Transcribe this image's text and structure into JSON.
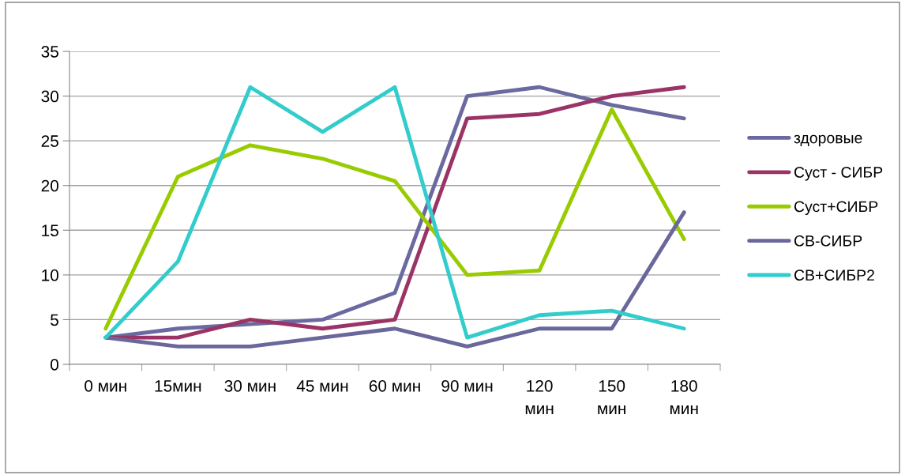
{
  "chart_data": {
    "type": "line",
    "categories": [
      "0 мин",
      "15мин",
      "30 мин",
      "45 мин",
      "60 мин",
      "90 мин",
      "120\nмин",
      "150\nмин",
      "180\nмин"
    ],
    "series": [
      {
        "name": "здоровые",
        "color": "#6b6aa0",
        "values": [
          3,
          4,
          4.5,
          5,
          8,
          30,
          31,
          29,
          27.5
        ]
      },
      {
        "name": "Суст - СИБР",
        "color": "#9b3466",
        "values": [
          3,
          3,
          5,
          4,
          5,
          27.5,
          28,
          30,
          31
        ]
      },
      {
        "name": "Суст+СИБР",
        "color": "#99cc00",
        "values": [
          4,
          21,
          24.5,
          23,
          20.5,
          10,
          10.5,
          28.5,
          14
        ]
      },
      {
        "name": "СВ-СИБР",
        "color": "#6a679b",
        "values": [
          3,
          2,
          2,
          3,
          4,
          2,
          4,
          4,
          17
        ]
      },
      {
        "name": "СВ+СИБР2",
        "color": "#33cccc",
        "values": [
          3,
          11.5,
          31,
          26,
          31,
          3,
          5.5,
          6,
          4
        ]
      }
    ],
    "ylim": [
      0,
      35
    ],
    "yticks": [
      0,
      5,
      10,
      15,
      20,
      25,
      30,
      35
    ],
    "grid": "y",
    "legend": "right",
    "marker": "none",
    "line_style": "solid"
  }
}
